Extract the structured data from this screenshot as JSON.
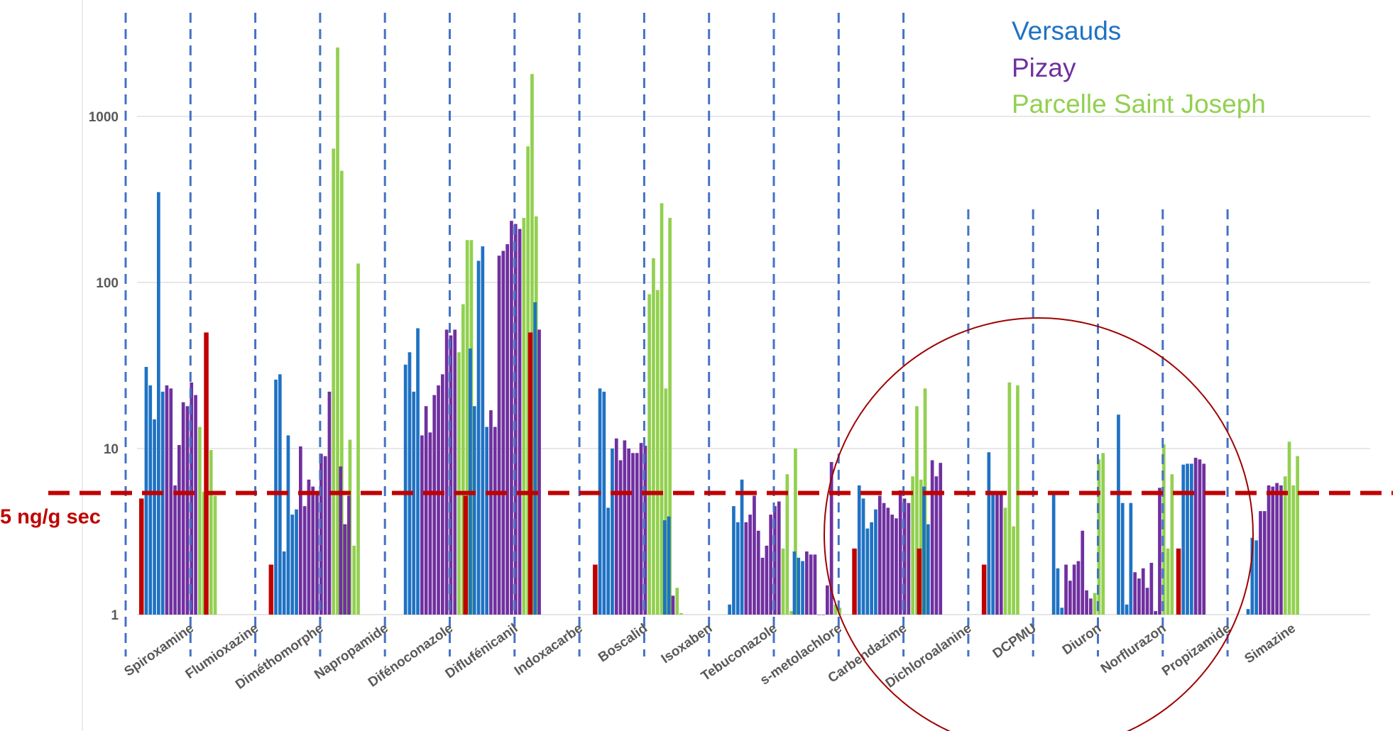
{
  "colors": {
    "versauds": "#1f72c4",
    "pizay": "#7030a0",
    "saint_joseph": "#92d050",
    "reference": "#c00000",
    "separator": "#4472c4",
    "grid": "#d9d9d9",
    "axis": "#d9d9d9"
  },
  "chart_data": {
    "type": "bar",
    "yscale": "log",
    "ylim": [
      1,
      3000
    ],
    "yticks": [
      1,
      10,
      100,
      1000
    ],
    "ytick_labels": [
      "1",
      "10",
      "100",
      "1000"
    ],
    "grid": true,
    "legend_position": "top-right",
    "legend": [
      "Versauds",
      "Pizay",
      "Parcelle Saint Joseph"
    ],
    "threshold": {
      "value": 5.4,
      "label": "5 ng/g sec"
    },
    "categories": [
      {
        "name": "Spiroxamine",
        "reference": 5.0,
        "series": [
          {
            "name": "Versauds",
            "values": [
              31,
              24,
              15,
              350,
              22
            ]
          },
          {
            "name": "Pizay",
            "values": [
              24,
              23,
              6,
              10.5,
              19,
              18,
              25,
              21
            ]
          },
          {
            "name": "Parcelle Saint Joseph",
            "values": [
              13.5,
              5.5
            ]
          }
        ]
      },
      {
        "name": "Flumioxazine",
        "reference": 50,
        "series": [
          {
            "name": "Versauds",
            "values": []
          },
          {
            "name": "Pizay",
            "values": []
          },
          {
            "name": "Parcelle Saint Joseph",
            "values": [
              9.8,
              5.2
            ]
          }
        ]
      },
      {
        "name": "Diméthomorphe",
        "reference": 2.0,
        "series": [
          {
            "name": "Versauds",
            "values": [
              26,
              28,
              2.4,
              12,
              4.0,
              4.3
            ]
          },
          {
            "name": "Pizay",
            "values": [
              10.3,
              4.5,
              6.5,
              5.9,
              5.5,
              9.3,
              9,
              22
            ]
          },
          {
            "name": "Parcelle Saint Joseph",
            "values": [
              640,
              2600,
              470,
              3.5,
              11.3,
              2.6,
              130
            ]
          }
        ]
      },
      {
        "name": "Napropamide",
        "reference": null,
        "series": [
          {
            "name": "Versauds",
            "values": []
          },
          {
            "name": "Pizay",
            "values": [
              7.8,
              3.5,
              5.2
            ]
          },
          {
            "name": "Parcelle Saint Joseph",
            "values": []
          }
        ]
      },
      {
        "name": "Difénoconazole",
        "reference": null,
        "series": [
          {
            "name": "Versauds",
            "values": [
              32,
              38,
              22,
              53
            ]
          },
          {
            "name": "Pizay",
            "values": [
              12,
              18,
              12.5,
              21,
              24,
              28,
              52,
              48,
              52
            ]
          },
          {
            "name": "Parcelle Saint Joseph",
            "values": [
              38,
              74,
              180,
              180
            ]
          }
        ]
      },
      {
        "name": "Diflufénicanil",
        "reference": 5.2,
        "series": [
          {
            "name": "Versauds",
            "values": [
              40,
              18,
              135,
              165,
              13.5
            ]
          },
          {
            "name": "Pizay",
            "values": [
              17,
              13.5,
              145,
              155,
              170,
              235,
              225,
              210
            ]
          },
          {
            "name": "Parcelle Saint Joseph",
            "values": [
              245,
              660,
              1800,
              250
            ]
          }
        ]
      },
      {
        "name": "Indoxacarbe",
        "reference": 50,
        "series": [
          {
            "name": "Versauds",
            "values": [
              76
            ]
          },
          {
            "name": "Pizay",
            "values": [
              52
            ]
          },
          {
            "name": "Parcelle Saint Joseph",
            "values": []
          }
        ]
      },
      {
        "name": "Boscalid",
        "reference": 2.0,
        "series": [
          {
            "name": "Versauds",
            "values": [
              23,
              22,
              4.4,
              10
            ]
          },
          {
            "name": "Pizay",
            "values": [
              11.5,
              8.5,
              11.2,
              10,
              9.4,
              9.4,
              10.8,
              10.4
            ]
          },
          {
            "name": "Parcelle Saint Joseph",
            "values": [
              85,
              140,
              90,
              300,
              23,
              245
            ]
          }
        ]
      },
      {
        "name": "Isoxaben",
        "reference": null,
        "series": [
          {
            "name": "Versauds",
            "values": [
              3.7,
              3.9
            ]
          },
          {
            "name": "Pizay",
            "values": [
              1.3
            ]
          },
          {
            "name": "Parcelle Saint Joseph",
            "values": [
              1.45,
              1.02
            ]
          }
        ]
      },
      {
        "name": "Tebuconazole",
        "reference": null,
        "series": [
          {
            "name": "Versauds",
            "values": [
              1.15,
              4.5,
              3.6,
              6.5
            ]
          },
          {
            "name": "Pizay",
            "values": [
              3.6,
              4.0,
              5.2,
              3.2,
              2.2,
              2.6,
              4.0,
              4.5,
              4.8
            ]
          },
          {
            "name": "Parcelle Saint Joseph",
            "values": [
              2.5,
              7.0,
              1.05,
              10
            ]
          }
        ]
      },
      {
        "name": "s-metolachlore",
        "reference": null,
        "series": [
          {
            "name": "Versauds",
            "values": [
              2.4,
              2.2,
              2.1
            ]
          },
          {
            "name": "Pizay",
            "values": [
              2.4,
              2.3,
              2.3,
              1.0,
              1.0,
              1.5,
              8.3
            ]
          },
          {
            "name": "Parcelle Saint Joseph",
            "values": [
              1.15,
              1.1
            ]
          }
        ]
      },
      {
        "name": "Carbendazime",
        "reference": 2.5,
        "series": [
          {
            "name": "Versauds",
            "values": [
              6.0,
              5.0,
              3.3,
              3.6,
              4.3
            ]
          },
          {
            "name": "Pizay",
            "values": [
              5.2,
              4.7,
              4.4,
              4.0,
              3.8,
              5.6,
              5.0,
              4.7
            ]
          },
          {
            "name": "Parcelle Saint Joseph",
            "values": [
              6.8,
              18,
              6.5,
              23
            ]
          }
        ]
      },
      {
        "name": "Dichloroalanine",
        "reference": 2.5,
        "series": [
          {
            "name": "Versauds",
            "values": [
              5.9,
              3.5
            ]
          },
          {
            "name": "Pizay",
            "values": [
              8.5,
              6.8,
              8.2
            ]
          },
          {
            "name": "Parcelle Saint Joseph",
            "values": []
          }
        ]
      },
      {
        "name": "DCPMU",
        "reference": 2.0,
        "series": [
          {
            "name": "Versauds",
            "values": [
              9.5,
              5.4
            ]
          },
          {
            "name": "Pizay",
            "values": [
              5.4,
              5.4
            ]
          },
          {
            "name": "Parcelle Saint Joseph",
            "values": [
              4.4,
              25,
              3.4,
              24
            ]
          }
        ]
      },
      {
        "name": "Diuron",
        "reference": null,
        "series": [
          {
            "name": "Versauds",
            "values": [
              5.4,
              1.9,
              1.1
            ]
          },
          {
            "name": "Pizay",
            "values": [
              2.0,
              1.6,
              2.0,
              2.1,
              3.2,
              1.4,
              1.25
            ]
          },
          {
            "name": "Parcelle Saint Joseph",
            "values": [
              1.35,
              8.6,
              9.4
            ]
          }
        ]
      },
      {
        "name": "Norflurazon",
        "reference": null,
        "series": [
          {
            "name": "Versauds",
            "values": [
              16,
              4.7,
              1.15,
              4.7
            ]
          },
          {
            "name": "Pizay",
            "values": [
              1.8,
              1.65,
              1.9,
              1.45,
              2.05,
              1.05,
              5.8
            ]
          },
          {
            "name": "Parcelle Saint Joseph",
            "values": [
              10.6,
              2.5,
              7.0
            ]
          }
        ]
      },
      {
        "name": "Propizamide",
        "reference": 2.5,
        "series": [
          {
            "name": "Versauds",
            "values": [
              8.0,
              8.1,
              8.1
            ]
          },
          {
            "name": "Pizay",
            "values": [
              8.8,
              8.6,
              8.1
            ]
          },
          {
            "name": "Parcelle Saint Joseph",
            "values": []
          }
        ]
      },
      {
        "name": "Simazine",
        "reference": 1.0,
        "series": [
          {
            "name": "Versauds",
            "values": [
              1.08,
              2.9,
              2.8
            ]
          },
          {
            "name": "Pizay",
            "values": [
              4.2,
              4.2,
              6.0,
              5.9,
              6.2,
              6.0
            ]
          },
          {
            "name": "Parcelle Saint Joseph",
            "values": [
              6.8,
              11,
              6.0,
              9.0
            ]
          }
        ]
      }
    ]
  }
}
